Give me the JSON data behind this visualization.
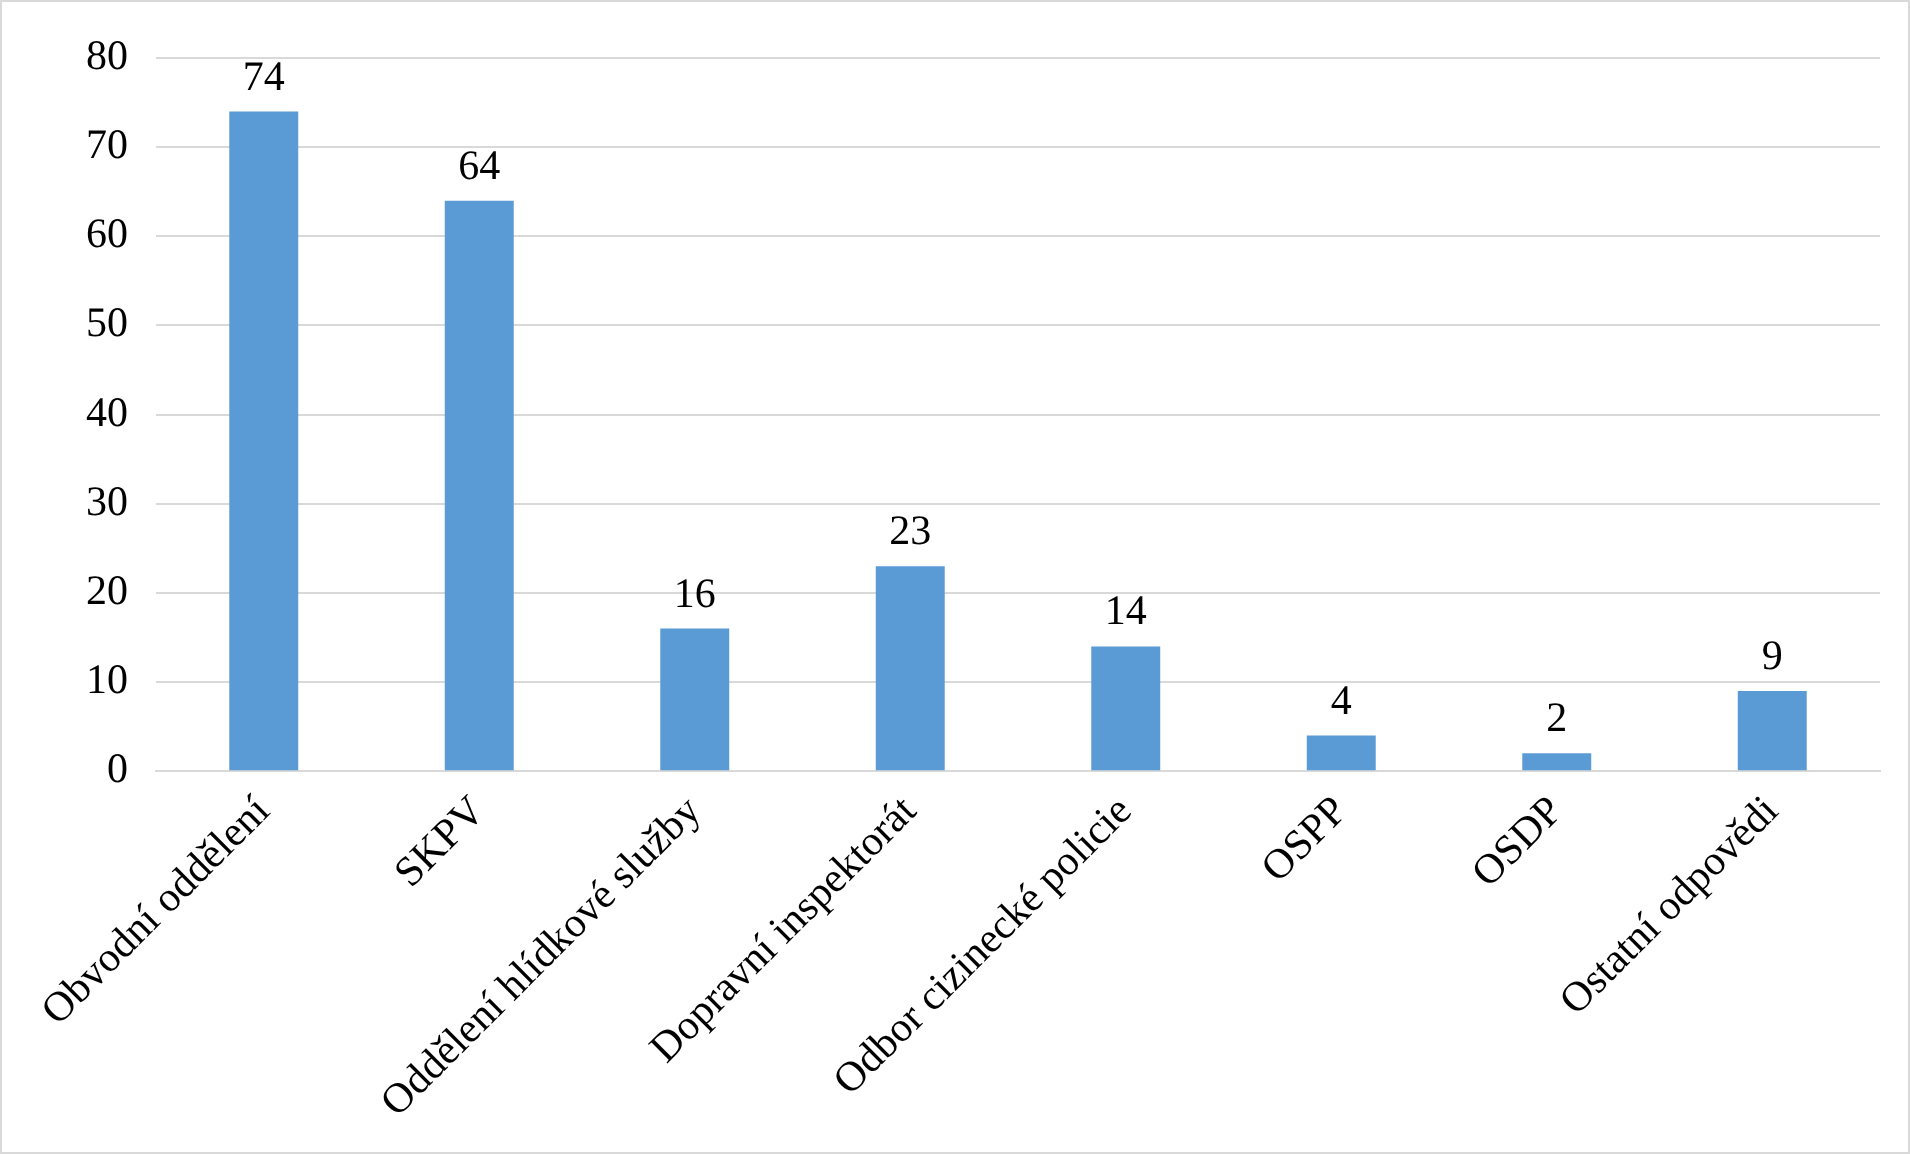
{
  "chart_data": {
    "type": "bar",
    "categories": [
      "Obvodní oddělení",
      "SKPV",
      "Oddělení hlídkové služby",
      "Dopravní inspektorát",
      "Odbor cizinecké policie",
      "OSPP",
      "OSDP",
      "Ostatní odpovědi"
    ],
    "values": [
      74,
      64,
      16,
      23,
      14,
      4,
      2,
      9
    ],
    "color": "#5b9bd5",
    "ylim": [
      0,
      80
    ],
    "yticks": [
      0,
      10,
      20,
      30,
      40,
      50,
      60,
      70,
      80
    ],
    "grid": "y",
    "legend": false,
    "data_labels": true
  }
}
